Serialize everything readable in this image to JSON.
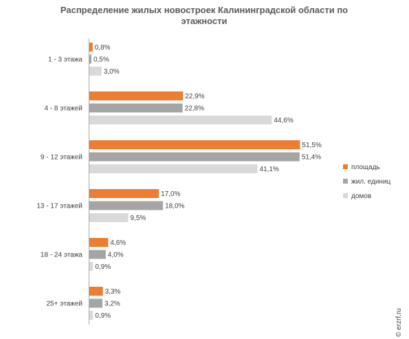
{
  "chart_data": {
    "type": "bar",
    "orientation": "horizontal",
    "title_lines": [
      "Распределение жилых новостроек Калининградской области по",
      "этажности"
    ],
    "categories": [
      "1 - 3 этажа",
      "4 - 8 этажей",
      "9 - 12 этажей",
      "13 - 17 этажей",
      "18 - 24 этажа",
      "25+ этажей"
    ],
    "series": [
      {
        "name": "площадь",
        "color": "#ED7D31",
        "values": [
          0.8,
          22.9,
          51.5,
          17.0,
          4.6,
          3.3
        ]
      },
      {
        "name": "жил. единиц",
        "color": "#A5A5A5",
        "values": [
          0.5,
          22.8,
          51.4,
          18.0,
          4.0,
          3.2
        ]
      },
      {
        "name": "домов",
        "color": "#D9D9D9",
        "values": [
          3.0,
          44.6,
          41.1,
          9.5,
          0.9,
          0.9
        ]
      }
    ],
    "value_labels": [
      [
        "0,8%",
        "22,9%",
        "51,5%",
        "17,0%",
        "4,6%",
        "3,3%"
      ],
      [
        "0,5%",
        "22,8%",
        "51,4%",
        "18,0%",
        "4,0%",
        "3,2%"
      ],
      [
        "3,0%",
        "44,6%",
        "41,1%",
        "9,5%",
        "0,9%",
        "0,9%"
      ]
    ],
    "xlim": [
      0,
      100
    ],
    "grid": false,
    "legend_position": "right"
  },
  "watermark": "© erzrf.ru"
}
